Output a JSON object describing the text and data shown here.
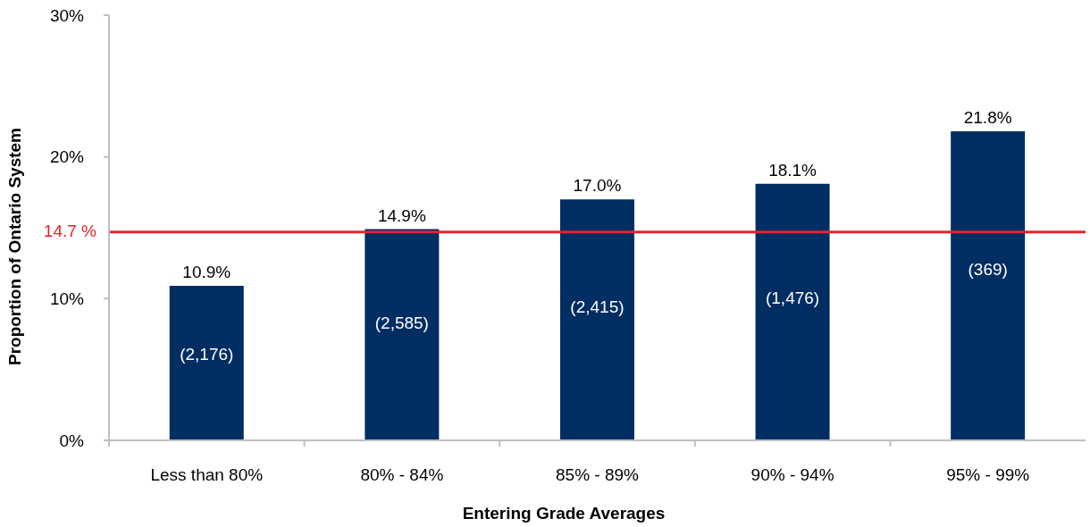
{
  "chart_data": {
    "type": "bar",
    "xlabel": "Entering Grade Averages",
    "ylabel": "Proportion of Ontario System",
    "categories": [
      "Less than 80%",
      "80% - 84%",
      "85% - 89%",
      "90% - 94%",
      "95% - 99%"
    ],
    "values": [
      10.9,
      14.9,
      17.0,
      18.1,
      21.8
    ],
    "color": "#002d62",
    "value_labels": [
      "10.9%",
      "14.9%",
      "17.0%",
      "18.1%",
      "21.8%"
    ],
    "ylim": [
      0,
      30
    ],
    "yticks": [
      {
        "value": 0,
        "label": "0%"
      },
      {
        "value": 10,
        "label": "10%"
      },
      {
        "value": 20,
        "label": "20%"
      },
      {
        "value": 30,
        "label": "30%"
      }
    ],
    "ref_lines": [
      {
        "axis": "y",
        "value": 14.7,
        "label": "14.7 %",
        "color": "#e8222a"
      }
    ],
    "annotations": [
      "(2,176)",
      "(2,585)",
      "(2,415)",
      "(1,476)",
      "(369)"
    ]
  }
}
